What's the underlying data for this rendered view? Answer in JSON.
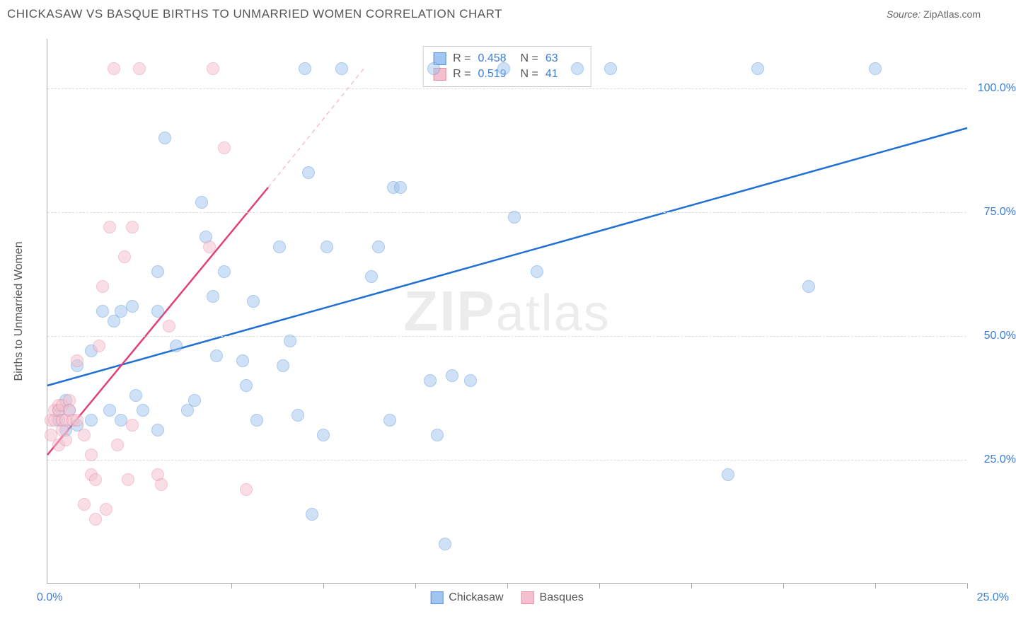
{
  "header": {
    "title": "CHICKASAW VS BASQUE BIRTHS TO UNMARRIED WOMEN CORRELATION CHART",
    "source_label": "Source:",
    "source_value": "ZipAtlas.com"
  },
  "chart": {
    "type": "scatter",
    "ylabel": "Births to Unmarried Women",
    "watermark": "ZIPatlas",
    "background_color": "#ffffff",
    "grid_color": "#dddddd",
    "axis_color": "#aaaaaa",
    "tick_label_color": "#3b7dd8",
    "xlim": [
      0,
      25
    ],
    "ylim": [
      0,
      110
    ],
    "ytick_labels": [
      "25.0%",
      "50.0%",
      "75.0%",
      "100.0%"
    ],
    "ytick_values": [
      25,
      50,
      75,
      100
    ],
    "xtick_values": [
      2.5,
      5,
      7.5,
      10,
      12.5,
      15,
      17.5,
      20,
      22.5,
      25
    ],
    "xtick_label_left": "0.0%",
    "xtick_label_right": "25.0%",
    "marker_radius": 9,
    "marker_opacity": 0.5,
    "series": [
      {
        "name": "Chickasaw",
        "color_fill": "#9fc5f0",
        "color_stroke": "#5a94d8",
        "trend_color": "#1f6fd4",
        "trend_width": 2.5,
        "trend_dashed_color": "#9fc5f0",
        "R": "0.458",
        "N": "63",
        "trend": {
          "x1": 0,
          "y1": 40,
          "x2": 25,
          "y2": 92
        },
        "points": [
          [
            0.3,
            35
          ],
          [
            0.3,
            33
          ],
          [
            0.5,
            37
          ],
          [
            0.5,
            31
          ],
          [
            0.6,
            35
          ],
          [
            0.8,
            32
          ],
          [
            0.8,
            44
          ],
          [
            1.2,
            33
          ],
          [
            1.2,
            47
          ],
          [
            1.5,
            55
          ],
          [
            1.7,
            35
          ],
          [
            1.8,
            53
          ],
          [
            2.0,
            33
          ],
          [
            2.0,
            55
          ],
          [
            2.3,
            56
          ],
          [
            2.4,
            38
          ],
          [
            2.6,
            35
          ],
          [
            3.0,
            63
          ],
          [
            3.0,
            31
          ],
          [
            3.0,
            55
          ],
          [
            3.2,
            90
          ],
          [
            3.5,
            48
          ],
          [
            3.8,
            35
          ],
          [
            4.0,
            37
          ],
          [
            4.2,
            77
          ],
          [
            4.3,
            70
          ],
          [
            4.5,
            58
          ],
          [
            4.6,
            46
          ],
          [
            4.8,
            63
          ],
          [
            5.3,
            45
          ],
          [
            5.4,
            40
          ],
          [
            5.6,
            57
          ],
          [
            5.7,
            33
          ],
          [
            6.3,
            68
          ],
          [
            6.4,
            44
          ],
          [
            6.6,
            49
          ],
          [
            6.8,
            34
          ],
          [
            7.0,
            104
          ],
          [
            7.1,
            83
          ],
          [
            7.2,
            14
          ],
          [
            7.5,
            30
          ],
          [
            7.6,
            68
          ],
          [
            8.0,
            104
          ],
          [
            8.8,
            62
          ],
          [
            9.0,
            68
          ],
          [
            9.3,
            33
          ],
          [
            9.4,
            80
          ],
          [
            9.6,
            80
          ],
          [
            10.4,
            41
          ],
          [
            10.5,
            104
          ],
          [
            10.6,
            30
          ],
          [
            10.8,
            8
          ],
          [
            11.0,
            42
          ],
          [
            11.5,
            41
          ],
          [
            12.4,
            104
          ],
          [
            12.7,
            74
          ],
          [
            13.3,
            63
          ],
          [
            14.4,
            104
          ],
          [
            15.3,
            104
          ],
          [
            18.5,
            22
          ],
          [
            19.3,
            104
          ],
          [
            20.7,
            60
          ],
          [
            22.5,
            104
          ]
        ]
      },
      {
        "name": "Basques",
        "color_fill": "#f5c0cd",
        "color_stroke": "#e88ba5",
        "trend_color": "#e23f7a",
        "trend_width": 2.5,
        "trend_dashed_color": "#f5c0cd",
        "R": "0.519",
        "N": "41",
        "trend": {
          "x1": 0,
          "y1": 26,
          "x2": 6,
          "y2": 80
        },
        "trend_dashed": {
          "x1": 6,
          "y1": 80,
          "x2": 8.6,
          "y2": 104
        },
        "points": [
          [
            0.1,
            33
          ],
          [
            0.1,
            30
          ],
          [
            0.2,
            33
          ],
          [
            0.2,
            35
          ],
          [
            0.3,
            28
          ],
          [
            0.3,
            36
          ],
          [
            0.3,
            35
          ],
          [
            0.4,
            31
          ],
          [
            0.4,
            36
          ],
          [
            0.4,
            33
          ],
          [
            0.5,
            29
          ],
          [
            0.5,
            33
          ],
          [
            0.6,
            37
          ],
          [
            0.6,
            35
          ],
          [
            0.7,
            33
          ],
          [
            0.8,
            33
          ],
          [
            0.8,
            45
          ],
          [
            1.0,
            30
          ],
          [
            1.0,
            16
          ],
          [
            1.2,
            22
          ],
          [
            1.2,
            26
          ],
          [
            1.3,
            13
          ],
          [
            1.3,
            21
          ],
          [
            1.4,
            48
          ],
          [
            1.5,
            60
          ],
          [
            1.6,
            15
          ],
          [
            1.7,
            72
          ],
          [
            1.8,
            104
          ],
          [
            1.9,
            28
          ],
          [
            2.1,
            66
          ],
          [
            2.2,
            21
          ],
          [
            2.3,
            72
          ],
          [
            2.3,
            32
          ],
          [
            2.5,
            104
          ],
          [
            3.0,
            22
          ],
          [
            3.1,
            20
          ],
          [
            3.3,
            52
          ],
          [
            4.4,
            68
          ],
          [
            4.5,
            104
          ],
          [
            4.8,
            88
          ],
          [
            5.4,
            19
          ]
        ]
      }
    ],
    "bottom_legend": [
      {
        "label": "Chickasaw",
        "fill": "#9fc5f0",
        "stroke": "#5a94d8"
      },
      {
        "label": "Basques",
        "fill": "#f5c0cd",
        "stroke": "#e88ba5"
      }
    ]
  }
}
